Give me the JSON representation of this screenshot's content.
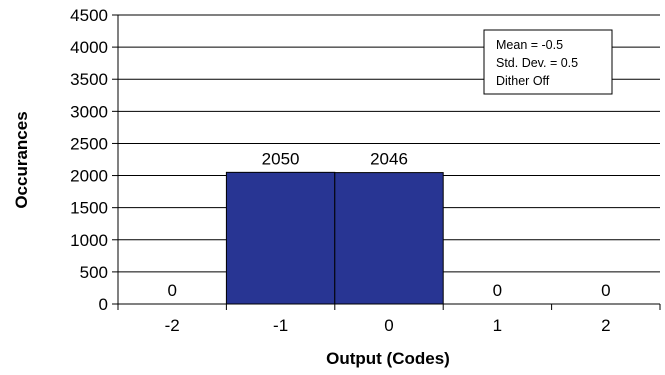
{
  "chart_data": {
    "type": "bar",
    "categories": [
      "-2",
      "-1",
      "0",
      "1",
      "2"
    ],
    "values": [
      0,
      2050,
      2046,
      0,
      0
    ],
    "data_labels": [
      "0",
      "2050",
      "2046",
      "0",
      "0"
    ],
    "xlabel": "Output (Codes)",
    "ylabel": "Occurances",
    "ylim": [
      0,
      4500
    ],
    "yticks": [
      0,
      500,
      1000,
      1500,
      2000,
      2500,
      3000,
      3500,
      4000,
      4500
    ],
    "grid": true,
    "bar_color": "#283593",
    "legend_position": "top-right",
    "annotation": [
      "Mean = -0.5",
      "Std. Dev. = 0.5",
      "Dither Off"
    ]
  }
}
